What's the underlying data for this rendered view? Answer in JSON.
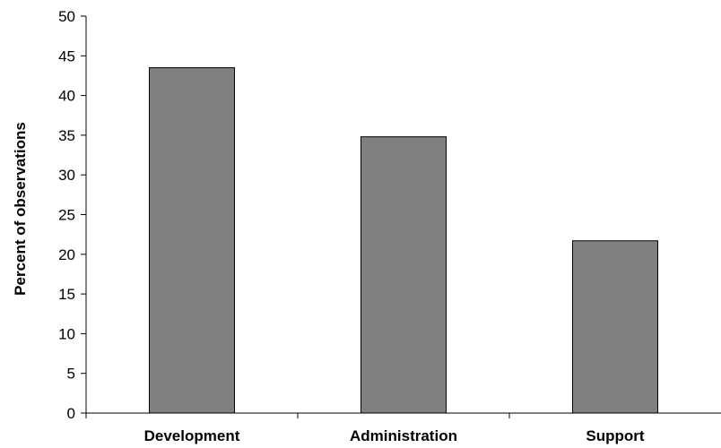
{
  "chart_data": {
    "type": "bar",
    "title": "",
    "xlabel": "",
    "ylabel": "Percent of observations",
    "categories": [
      "Development",
      "Administration",
      "Support"
    ],
    "values": [
      43.5,
      34.8,
      21.7
    ],
    "ylim": [
      0,
      50
    ],
    "yticks": [
      "0",
      "5",
      "10",
      "15",
      "20",
      "25",
      "30",
      "35",
      "40",
      "45",
      "50"
    ],
    "grid": false,
    "legend": "none",
    "colors": {
      "bar_fill": "#808080",
      "bar_stroke": "#000000",
      "axis": "#000000",
      "background": "#ffffff"
    }
  }
}
